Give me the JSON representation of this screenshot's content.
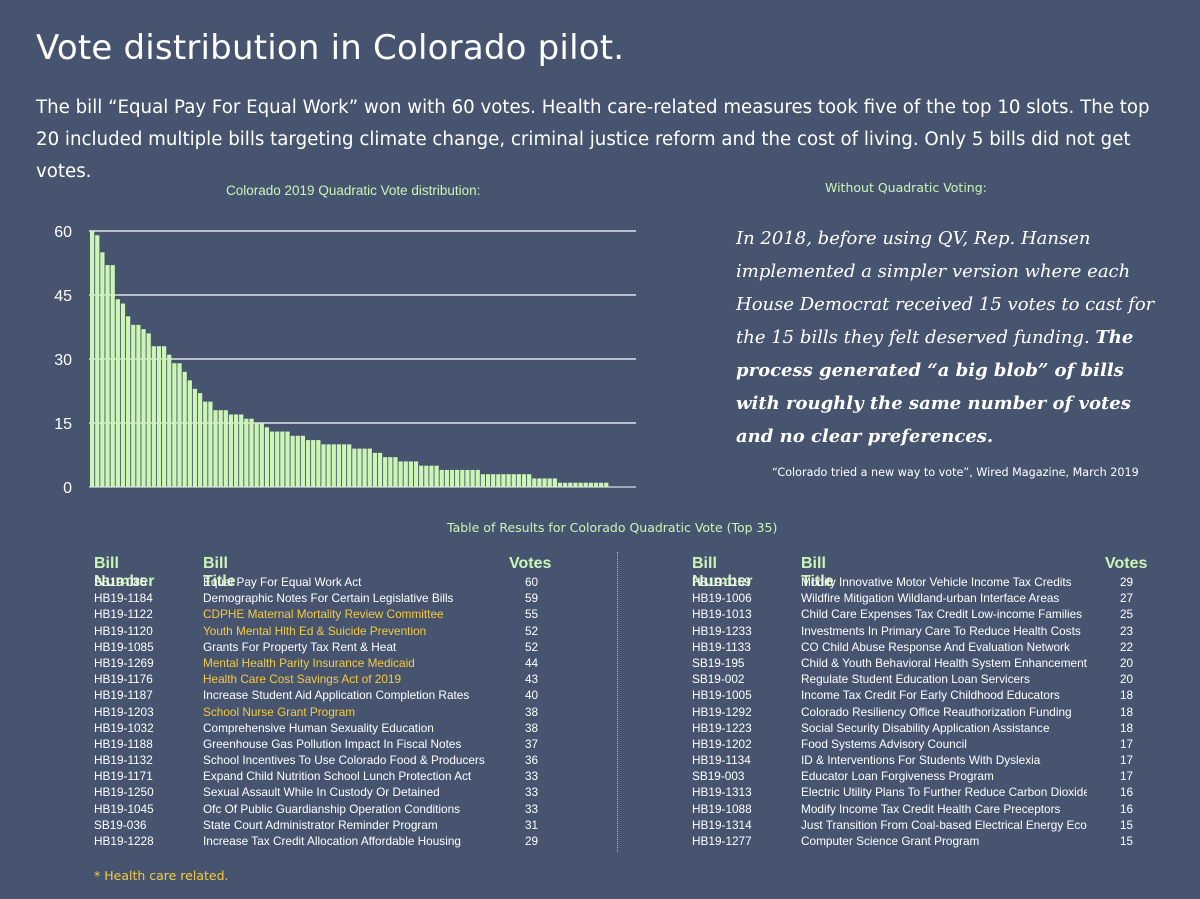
{
  "title": "Vote distribution in Colorado pilot.",
  "subtitle": "The bill “Equal Pay For Equal Work” won with 60 votes. Health care-related measures took five of the top 10 slots. The top 20 included multiple bills targeting climate change, criminal justice reform and the cost of living. Only 5 bills did not get votes.",
  "quote": {
    "label": "Without Quadratic Voting:",
    "italic_part": "In 2018, before using QV, Rep. Hansen implemented a simpler version where each House Democrat received 15 votes to cast for the 15 bills they felt deserved funding.",
    "bold_part": "The process generated “a big blob” of bills with roughly the same number of votes and no clear preferences.",
    "source": "“Colorado tried a new way to vote”, Wired  Magazine, March 2019"
  },
  "chart_data": {
    "type": "bar",
    "title": "Colorado 2019 Quadratic Vote distribution:",
    "xlabel": "",
    "ylabel": "",
    "ylim": [
      0,
      60
    ],
    "yticks": [
      0,
      15,
      30,
      45,
      60
    ],
    "grid": true,
    "color": "#ccf5b6",
    "values": [
      60,
      59,
      55,
      52,
      52,
      44,
      43,
      40,
      38,
      38,
      37,
      36,
      33,
      33,
      33,
      31,
      29,
      29,
      27,
      25,
      23,
      22,
      20,
      20,
      18,
      18,
      18,
      17,
      17,
      17,
      16,
      16,
      15,
      15,
      14,
      13,
      13,
      13,
      13,
      12,
      12,
      12,
      11,
      11,
      11,
      10,
      10,
      10,
      10,
      10,
      10,
      9,
      9,
      9,
      9,
      8,
      8,
      7,
      7,
      7,
      6,
      6,
      6,
      6,
      5,
      5,
      5,
      5,
      4,
      4,
      4,
      4,
      4,
      4,
      4,
      4,
      3,
      3,
      3,
      3,
      3,
      3,
      3,
      3,
      3,
      3,
      2,
      2,
      2,
      2,
      2,
      1,
      1,
      1,
      1,
      1,
      1,
      1,
      1,
      1,
      1,
      0,
      0,
      0,
      0,
      0
    ]
  },
  "table": {
    "caption": "Table of Results for Colorado  Quadratic Vote (Top 35)",
    "headers": {
      "num": "Bill Number",
      "title": "Bill Title",
      "votes": "Votes"
    },
    "left": [
      {
        "num": "SB19-085",
        "title": "Equal Pay For Equal Work Act",
        "votes": "60",
        "hc": false
      },
      {
        "num": "HB19-1184",
        "title": "Demographic Notes For Certain Legislative Bills",
        "votes": "59",
        "hc": false
      },
      {
        "num": "HB19-1122",
        "title": "CDPHE Maternal Mortality Review Committee",
        "votes": "55",
        "hc": true
      },
      {
        "num": "HB19-1120",
        "title": "Youth Mental Hlth Ed & Suicide Prevention",
        "votes": "52",
        "hc": true
      },
      {
        "num": "HB19-1085",
        "title": "Grants For Property Tax Rent & Heat",
        "votes": "52",
        "hc": false
      },
      {
        "num": "HB19-1269",
        "title": "Mental Health Parity Insurance Medicaid",
        "votes": "44",
        "hc": true
      },
      {
        "num": "HB19-1176",
        "title": "Health Care Cost Savings Act of 2019",
        "votes": "43",
        "hc": true
      },
      {
        "num": "HB19-1187",
        "title": "Increase Student Aid Application Completion Rates",
        "votes": "40",
        "hc": false
      },
      {
        "num": "HB19-1203",
        "title": "School Nurse Grant Program",
        "votes": "38",
        "hc": true
      },
      {
        "num": "HB19-1032",
        "title": "Comprehensive Human Sexuality Education",
        "votes": "38",
        "hc": false
      },
      {
        "num": "HB19-1188",
        "title": "Greenhouse Gas Pollution Impact In Fiscal Notes",
        "votes": "37",
        "hc": false
      },
      {
        "num": "HB19-1132",
        "title": "School Incentives To Use Colorado Food & Producers",
        "votes": "36",
        "hc": false
      },
      {
        "num": "HB19-1171",
        "title": "Expand Child Nutrition School Lunch Protection Act",
        "votes": "33",
        "hc": false
      },
      {
        "num": "HB19-1250",
        "title": "Sexual Assault While In Custody Or Detained",
        "votes": "33",
        "hc": false
      },
      {
        "num": "HB19-1045",
        "title": "Ofc Of Public Guardianship Operation Conditions",
        "votes": "33",
        "hc": false
      },
      {
        "num": "SB19-036",
        "title": "State Court Administrator Reminder Program",
        "votes": "31",
        "hc": false
      },
      {
        "num": "HB19-1228",
        "title": "Increase Tax Credit Allocation Affordable Housing",
        "votes": "29",
        "hc": false
      }
    ],
    "right": [
      {
        "num": "HB19-1159",
        "title": "Modify Innovative Motor Vehicle Income Tax Credits",
        "votes": "29",
        "hc": false
      },
      {
        "num": "HB19-1006",
        "title": "Wildfire Mitigation Wildland-urban Interface Areas",
        "votes": "27",
        "hc": false
      },
      {
        "num": "HB19-1013",
        "title": "Child Care Expenses Tax Credit Low-income Families",
        "votes": "25",
        "hc": false
      },
      {
        "num": "HB19-1233",
        "title": "Investments In Primary Care To Reduce Health Costs",
        "votes": "23",
        "hc": false
      },
      {
        "num": "HB19-1133",
        "title": "CO Child Abuse Response And Evaluation Network",
        "votes": "22",
        "hc": false
      },
      {
        "num": "SB19-195",
        "title": "Child & Youth Behavioral Health System Enhancement",
        "votes": "20",
        "hc": false
      },
      {
        "num": "SB19-002",
        "title": "Regulate Student Education Loan Servicers",
        "votes": "20",
        "hc": false
      },
      {
        "num": "HB19-1005",
        "title": "Income Tax Credit For Early Childhood Educators",
        "votes": "18",
        "hc": false
      },
      {
        "num": "HB19-1292",
        "title": "Colorado Resiliency Office Reauthorization Funding",
        "votes": "18",
        "hc": false
      },
      {
        "num": "HB19-1223",
        "title": "Social Security Disability Application Assistance",
        "votes": "18",
        "hc": false
      },
      {
        "num": "HB19-1202",
        "title": "Food Systems Advisory Council",
        "votes": "17",
        "hc": false
      },
      {
        "num": "HB19-1134",
        "title": "ID & Interventions For Students With Dyslexia",
        "votes": "17",
        "hc": false
      },
      {
        "num": "SB19-003",
        "title": "Educator Loan Forgiveness Program",
        "votes": "17",
        "hc": false
      },
      {
        "num": "HB19-1313",
        "title": "Electric Utility Plans To Further Reduce Carbon Dioxide",
        "votes": "16",
        "hc": false
      },
      {
        "num": "HB19-1088",
        "title": "Modify Income Tax Credit Health Care Preceptors",
        "votes": "16",
        "hc": false
      },
      {
        "num": "HB19-1314",
        "title": "Just Transition From Coal-based Electrical Energy Eco",
        "votes": "15",
        "hc": false
      },
      {
        "num": "HB19-1277",
        "title": "Computer Science Grant Program",
        "votes": "15",
        "hc": false
      }
    ]
  },
  "footnote": "* Health care related."
}
